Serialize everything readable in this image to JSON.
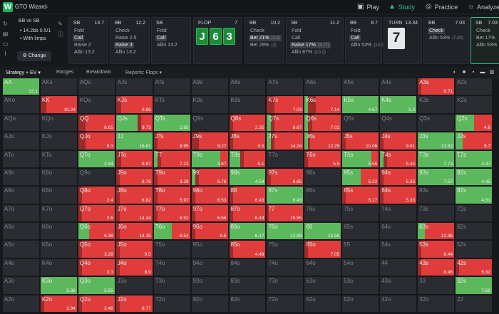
{
  "app": {
    "name": "GTO Wizard"
  },
  "nav": {
    "play": "Play",
    "study": "Study",
    "practice": "Practice",
    "analyze": "Analyze"
  },
  "spot": {
    "title": "BB vs SB",
    "line1": "14.2bb 0.5/1",
    "line2": "With limps",
    "change_label": "Change"
  },
  "nodes": [
    {
      "pos": "SB",
      "num": "13.7",
      "actions": [
        {
          "label": "Fold"
        },
        {
          "label": "Call",
          "selected": true
        },
        {
          "label": "Raise 2"
        },
        {
          "label": "Allin 13.2"
        }
      ]
    },
    {
      "pos": "BB",
      "num": "12.2",
      "actions": [
        {
          "label": "Check"
        },
        {
          "label": "Raise 2.5"
        },
        {
          "label": "Raise 3",
          "selected": true
        },
        {
          "label": "Allin 13.2"
        }
      ]
    },
    {
      "pos": "SB",
      "num": "",
      "actions": [
        {
          "label": "Fold"
        },
        {
          "label": "Call",
          "selected": true
        },
        {
          "label": "Allin 13.2"
        }
      ]
    },
    {
      "pos": "FLOP",
      "num": "7",
      "cards": [
        "J",
        "6",
        "3"
      ]
    },
    {
      "pos": "BB",
      "num": "10.2",
      "actions": [
        {
          "label": "Check"
        },
        {
          "label": "Bet 21%",
          "sub": "(1.5)",
          "selected": true
        },
        {
          "label": "Bet 29%",
          "sub": "(2)"
        }
      ]
    },
    {
      "pos": "SB",
      "num": "11.2",
      "actions": [
        {
          "label": "Fold"
        },
        {
          "label": "Call"
        },
        {
          "label": "Raise 17%",
          "sub": "(3.17)",
          "selected": true
        },
        {
          "label": "Allin 87%",
          "sub": "(10.2)"
        }
      ]
    },
    {
      "pos": "BB",
      "num": "8.7",
      "actions": [
        {
          "label": "Fold"
        },
        {
          "label": "Call",
          "selected": true
        },
        {
          "label": "Allin 53%",
          "sub": "(10.2)"
        }
      ]
    },
    {
      "pos": "TURN",
      "num": "13.34",
      "turn_card": "7"
    },
    {
      "pos": "BB",
      "num": "7.03",
      "actions": [
        {
          "label": "Check",
          "selected": true
        },
        {
          "label": "Allin 53%",
          "sub": "(7.03)"
        }
      ]
    },
    {
      "pos": "SB",
      "num": "7.03",
      "actions": [
        {
          "label": "Check"
        },
        {
          "label": "Bet 17%"
        },
        {
          "label": "Allin 53%"
        }
      ]
    }
  ],
  "tabs": {
    "strategy": "Strategy + EV",
    "ranges": "Ranges",
    "breakdown": "Breakdown",
    "reports": "Reports: Flops"
  },
  "colors": {
    "green": "#5cb85c",
    "red": "#e03c3c",
    "dark_red": "#9e2a2a",
    "empty": "#2a2c31",
    "accent": "#2ec28a"
  },
  "grid": [
    [
      {
        "h": "AA",
        "ev": "12.1",
        "g": 1
      },
      {
        "h": "AKs"
      },
      {
        "h": "AQs"
      },
      {
        "h": "AJs"
      },
      {
        "h": "ATs"
      },
      {
        "h": "A9s"
      },
      {
        "h": "A8s"
      },
      {
        "h": "A7s"
      },
      {
        "h": "A6s"
      },
      {
        "h": "A5s"
      },
      {
        "h": "A4s"
      },
      {
        "h": "A3s",
        "ev": "6.71",
        "g": 0,
        "d": 0.1
      },
      {
        "h": "A2s"
      }
    ],
    [
      {
        "h": "AKo"
      },
      {
        "h": "KK",
        "ev": "10.24",
        "g": 0,
        "d": 0.15
      },
      {
        "h": "KQs"
      },
      {
        "h": "KJs",
        "ev": "9.89",
        "g": 0,
        "d": 0.15
      },
      {
        "h": "KTs"
      },
      {
        "h": "K9s"
      },
      {
        "h": "K8s"
      },
      {
        "h": "K7s",
        "ev": "7.03",
        "g": 0,
        "d": 0.2
      },
      {
        "h": "K6s",
        "ev": "7.14",
        "g": 0.1,
        "d": 0.2
      },
      {
        "h": "K5s",
        "ev": "4.67",
        "g": 1
      },
      {
        "h": "K4s",
        "ev": "5.3",
        "g": 1
      },
      {
        "h": "K3s"
      },
      {
        "h": "K2s"
      }
    ],
    [
      {
        "h": "AQo"
      },
      {
        "h": "KQo"
      },
      {
        "h": "QQ",
        "ev": "8.65",
        "g": 0,
        "d": 0.2
      },
      {
        "h": "QJs",
        "ev": "9.73",
        "g": 0.6,
        "d": 0.1
      },
      {
        "h": "QTs",
        "ev": "2.65",
        "g": 1
      },
      {
        "h": "Q9s"
      },
      {
        "h": "Q8s",
        "ev": "2.35",
        "g": 0,
        "d": 0.1
      },
      {
        "h": "Q7s",
        "ev": "6.67",
        "g": 0.1,
        "d": 0.1
      },
      {
        "h": "Q6s",
        "ev": "7.02",
        "g": 0.1,
        "d": 0.1
      },
      {
        "h": "Q5s"
      },
      {
        "h": "Q4s"
      },
      {
        "h": "Q3s"
      },
      {
        "h": "Q2s",
        "ev": "4.6",
        "g": 0.5,
        "d": 0
      }
    ],
    [
      {
        "h": "AJo"
      },
      {
        "h": "KJo"
      },
      {
        "h": "QJo",
        "ev": "9.3",
        "g": 0,
        "d": 0.2
      },
      {
        "h": "JJ",
        "ev": "16.61",
        "g": 1
      },
      {
        "h": "JTs",
        "ev": "8.95",
        "g": 0,
        "d": 0.1
      },
      {
        "h": "J9s",
        "ev": "9.27",
        "g": 0,
        "d": 0.2
      },
      {
        "h": "J8s",
        "ev": "9.5",
        "g": 0,
        "d": 0.1
      },
      {
        "h": "J7s",
        "ev": "14.24",
        "g": 0.1,
        "d": 0.1
      },
      {
        "h": "J6s",
        "ev": "12.29",
        "g": 0.1,
        "d": 0.05
      },
      {
        "h": "J5s",
        "ev": "10.06",
        "g": 0,
        "d": 0.1
      },
      {
        "h": "J4s",
        "ev": "9.81",
        "g": 0,
        "d": 0.1
      },
      {
        "h": "J3s",
        "ev": "13.52",
        "g": 1
      },
      {
        "h": "J2s",
        "ev": "9.7",
        "g": 0.2,
        "d": 0
      }
    ],
    [
      {
        "h": "ATo"
      },
      {
        "h": "KTo"
      },
      {
        "h": "QTo",
        "ev": "2.44",
        "g": 1
      },
      {
        "h": "JTo",
        "ev": "8.87",
        "g": 0,
        "d": 0.15
      },
      {
        "h": "TT",
        "ev": "7.22",
        "g": 0.1,
        "d": 0.1
      },
      {
        "h": "T9s",
        "ev": "4.67",
        "g": 0.8,
        "d": 0
      },
      {
        "h": "T8s",
        "ev": "5.1",
        "g": 0.3,
        "d": 0.1
      },
      {
        "h": "T7s"
      },
      {
        "h": "T6s",
        "ev": "5.5",
        "g": 0,
        "d": 0.1
      },
      {
        "h": "T5s",
        "ev": "5.55",
        "g": 0.8,
        "d": 0
      },
      {
        "h": "T4s",
        "ev": "5.44",
        "g": 0.1,
        "d": 0.1
      },
      {
        "h": "T3s",
        "ev": "7.73",
        "g": 1
      },
      {
        "h": "T2s",
        "ev": "4.47",
        "g": 1
      }
    ],
    [
      {
        "h": "A9o"
      },
      {
        "h": "K9o"
      },
      {
        "h": "Q9o"
      },
      {
        "h": "J9o",
        "ev": "8.76",
        "g": 0,
        "d": 0.1
      },
      {
        "h": "T9o",
        "ev": "3.29",
        "g": 0,
        "d": 0.1
      },
      {
        "h": "99",
        "ev": "6.78",
        "g": 0.1,
        "d": 0.1
      },
      {
        "h": "98s",
        "ev": "4.54",
        "g": 1
      },
      {
        "h": "97s",
        "ev": "6.65",
        "g": 0,
        "d": 0.1
      },
      {
        "h": "96s"
      },
      {
        "h": "95s",
        "ev": "5.22",
        "g": 0.5,
        "d": 0
      },
      {
        "h": "94s",
        "ev": "5.35",
        "g": 0,
        "d": 0.1
      },
      {
        "h": "93s",
        "ev": "7.57",
        "g": 1
      },
      {
        "h": "92s",
        "ev": "4.45",
        "g": 1
      }
    ],
    [
      {
        "h": "A8o"
      },
      {
        "h": "K8o"
      },
      {
        "h": "Q8o",
        "ev": "2.4",
        "g": 0,
        "d": 0.1
      },
      {
        "h": "J8o",
        "ev": "8.82",
        "g": 0,
        "d": 0.1
      },
      {
        "h": "T8o",
        "ev": "5.97",
        "g": 0,
        "d": 0.1
      },
      {
        "h": "98o",
        "ev": "6.53",
        "g": 0,
        "d": 0.1
      },
      {
        "h": "88",
        "ev": "6.43",
        "g": 0,
        "d": 0.1
      },
      {
        "h": "87s",
        "ev": "6.43",
        "g": 1
      },
      {
        "h": "86s"
      },
      {
        "h": "85s",
        "ev": "5.17",
        "g": 0,
        "d": 0.1
      },
      {
        "h": "84s",
        "ev": "5.33",
        "g": 0,
        "d": 0.1
      },
      {
        "h": "83s"
      },
      {
        "h": "82s",
        "ev": "4.51",
        "g": 1
      }
    ],
    [
      {
        "h": "A7o"
      },
      {
        "h": "K7o"
      },
      {
        "h": "Q7o",
        "ev": "2.6",
        "g": 0,
        "d": 0.1
      },
      {
        "h": "J7o",
        "ev": "14.24",
        "g": 0,
        "d": 0.1
      },
      {
        "h": "T7o",
        "ev": "6.52",
        "g": 0,
        "d": 0.1
      },
      {
        "h": "97o",
        "ev": "6.56",
        "g": 0,
        "d": 0.1
      },
      {
        "h": "87o",
        "ev": "6.49",
        "g": 0,
        "d": 0.1
      },
      {
        "h": "77",
        "ev": "15.55",
        "g": 0,
        "d": 0.05
      },
      {
        "h": "76s"
      },
      {
        "h": "75s"
      },
      {
        "h": "74s"
      },
      {
        "h": "73s"
      },
      {
        "h": "72s"
      }
    ],
    [
      {
        "h": "A6o"
      },
      {
        "h": "K6o"
      },
      {
        "h": "Q6o",
        "ev": "6.38",
        "g": 0.3,
        "d": 0
      },
      {
        "h": "J6o",
        "ev": "14.15",
        "g": 0,
        "d": 0.1
      },
      {
        "h": "T6o",
        "ev": "6.54",
        "g": 0.5,
        "d": 0
      },
      {
        "h": "96o",
        "ev": "6.5",
        "g": 0,
        "d": 0.1
      },
      {
        "h": "86o",
        "ev": "6.17",
        "g": 1
      },
      {
        "h": "76o",
        "ev": "12.99",
        "g": 1
      },
      {
        "h": "66",
        "ev": "12.58",
        "g": 1
      },
      {
        "h": "65s"
      },
      {
        "h": "64s"
      },
      {
        "h": "63s",
        "ev": "12.36",
        "g": 0.2,
        "d": 0
      },
      {
        "h": "62s"
      }
    ],
    [
      {
        "h": "A5o"
      },
      {
        "h": "K5o"
      },
      {
        "h": "Q5o",
        "ev": "3.28",
        "g": 0,
        "d": 0.1
      },
      {
        "h": "J5o",
        "ev": "9.5",
        "g": 0,
        "d": 0.1
      },
      {
        "h": "T5o"
      },
      {
        "h": "95o"
      },
      {
        "h": "85o",
        "ev": "4.48",
        "g": 0,
        "d": 0.1
      },
      {
        "h": "75o"
      },
      {
        "h": "65o",
        "ev": "7.05",
        "g": 0,
        "d": 0.1
      },
      {
        "h": "55"
      },
      {
        "h": "54s"
      },
      {
        "h": "53s",
        "ev": "8.44",
        "g": 0,
        "d": 0.1
      },
      {
        "h": "52s"
      }
    ],
    [
      {
        "h": "A4o"
      },
      {
        "h": "K4o"
      },
      {
        "h": "Q4o",
        "ev": "3.3",
        "g": 0,
        "d": 0.1
      },
      {
        "h": "J4o",
        "ev": "8.9",
        "g": 0,
        "d": 0.1
      },
      {
        "h": "T4o"
      },
      {
        "h": "94o"
      },
      {
        "h": "84o"
      },
      {
        "h": "74o"
      },
      {
        "h": "64o"
      },
      {
        "h": "54o"
      },
      {
        "h": "44"
      },
      {
        "h": "43s",
        "ev": "8.46",
        "g": 0,
        "d": 0.1
      },
      {
        "h": "42s",
        "ev": "5.32",
        "g": 0,
        "d": 0.1
      }
    ],
    [
      {
        "h": "A3o"
      },
      {
        "h": "K3o",
        "ev": "5.88",
        "g": 1
      },
      {
        "h": "Q3o",
        "ev": "5.55",
        "g": 1
      },
      {
        "h": "J3o"
      },
      {
        "h": "T3o"
      },
      {
        "h": "93o"
      },
      {
        "h": "83o"
      },
      {
        "h": "73o"
      },
      {
        "h": "63o"
      },
      {
        "h": "53o"
      },
      {
        "h": "43o"
      },
      {
        "h": "33"
      },
      {
        "h": "32s",
        "ev": "7.59",
        "g": 1
      }
    ],
    [
      {
        "h": "A2o"
      },
      {
        "h": "K2o",
        "ev": "2.94",
        "g": 0,
        "d": 0.1
      },
      {
        "h": "Q2o",
        "ev": "2.46",
        "g": 0,
        "d": 0.1
      },
      {
        "h": "J2o",
        "ev": "8.77",
        "g": 0,
        "d": 0.1
      },
      {
        "h": "T2o"
      },
      {
        "h": "92o"
      },
      {
        "h": "82o"
      },
      {
        "h": "72o"
      },
      {
        "h": "62o"
      },
      {
        "h": "52o"
      },
      {
        "h": "42o"
      },
      {
        "h": "32o"
      },
      {
        "h": "22"
      }
    ]
  ]
}
